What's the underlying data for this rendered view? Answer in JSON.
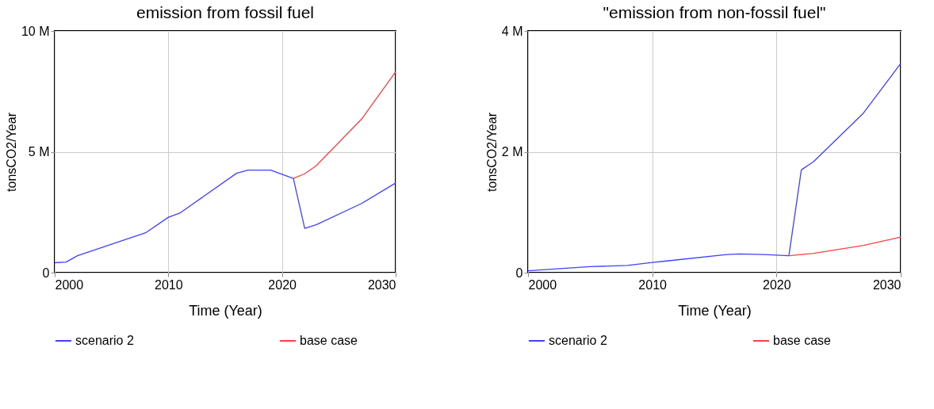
{
  "chart_data": [
    {
      "type": "line",
      "title": "emission from fossil fuel",
      "xlabel": "Time (Year)",
      "ylabel": "tonsCO2/Year",
      "x": [
        2000,
        2001,
        2002,
        2008,
        2010,
        2011,
        2016,
        2017,
        2019,
        2021,
        2022,
        2023,
        2027,
        2030
      ],
      "series": [
        {
          "name": "scenario 2",
          "color": "#4040ff",
          "values": [
            410000,
            440000,
            700000,
            1650000,
            2290000,
            2460000,
            4110000,
            4240000,
            4240000,
            3900000,
            1830000,
            1980000,
            2860000,
            3710000
          ]
        },
        {
          "name": "base case",
          "color": "#ff4040",
          "values": [
            null,
            null,
            null,
            null,
            null,
            null,
            null,
            null,
            null,
            3900000,
            4090000,
            4420000,
            6350000,
            8310000
          ]
        }
      ],
      "xlim": [
        2000,
        2030
      ],
      "xticks": [
        2000,
        2010,
        2020,
        2030
      ],
      "ylim": [
        0,
        10000000
      ],
      "yticks": [
        0,
        {
          "value": 5000000,
          "label": "5 M"
        },
        {
          "value": 10000000,
          "label": "10 M"
        }
      ],
      "grid": true,
      "legend": "bottom"
    },
    {
      "type": "line",
      "title": "\"emission from non-fossil fuel\"",
      "xlabel": "Time (Year)",
      "ylabel": "tonsCO2/Year",
      "x": [
        2000,
        2005,
        2008,
        2010,
        2011,
        2016,
        2017,
        2019,
        2021,
        2022,
        2023,
        2027,
        2030
      ],
      "series": [
        {
          "name": "scenario 2",
          "color": "#4040ff",
          "values": [
            30000,
            100000,
            120000,
            170000,
            190000,
            300000,
            310000,
            300000,
            280000,
            1700000,
            1840000,
            2640000,
            3460000
          ]
        },
        {
          "name": "base case",
          "color": "#ff4040",
          "values": [
            null,
            null,
            null,
            null,
            null,
            null,
            null,
            null,
            280000,
            300000,
            320000,
            450000,
            590000
          ]
        }
      ],
      "xlim": [
        2000,
        2030
      ],
      "xticks": [
        2000,
        2010,
        2020,
        2030
      ],
      "ylim": [
        0,
        4000000
      ],
      "yticks": [
        0,
        {
          "value": 2000000,
          "label": "2 M"
        },
        {
          "value": 4000000,
          "label": "4 M"
        }
      ],
      "grid": true,
      "legend": "bottom"
    }
  ]
}
